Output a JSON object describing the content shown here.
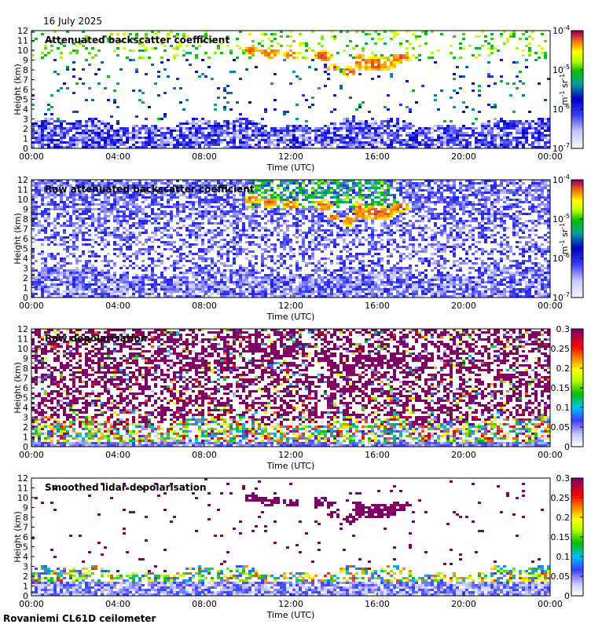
{
  "header": {
    "date": "16 July 2025"
  },
  "footer": {
    "instrument": "Rovaniemi CL61D ceilometer"
  },
  "colors": {
    "depol_cloud": "#800066",
    "bs_low": "#3c3cff",
    "bs_high": "#ff6600"
  },
  "chart_data": [
    {
      "type": "heatmap",
      "title": "Attenuated backscatter coefficient",
      "xlabel": "Time (UTC)",
      "ylabel": "Height (km)",
      "x_ticks": [
        "00:00",
        "04:00",
        "08:00",
        "12:00",
        "16:00",
        "20:00",
        "00:00"
      ],
      "xlim_hours": [
        0,
        24
      ],
      "y_ticks": [
        0,
        1,
        2,
        3,
        4,
        5,
        6,
        7,
        8,
        9,
        10,
        11,
        12
      ],
      "ylim": [
        0,
        12
      ],
      "colorbar": {
        "scale": "log",
        "range": [
          1e-07,
          0.0001
        ],
        "tick_labels": [
          "10-7",
          "10-6",
          "10-5",
          "10-4"
        ],
        "tick_values": [
          1e-07,
          1e-06,
          1e-05,
          0.0001
        ],
        "unit_label": "m-1 sr-1"
      }
    },
    {
      "type": "heatmap",
      "title": "Raw attenuated backscatter coefficient",
      "xlabel": "Time (UTC)",
      "ylabel": "Height (km)",
      "x_ticks": [
        "00:00",
        "04:00",
        "08:00",
        "12:00",
        "16:00",
        "20:00",
        "00:00"
      ],
      "xlim_hours": [
        0,
        24
      ],
      "y_ticks": [
        0,
        1,
        2,
        3,
        4,
        5,
        6,
        7,
        8,
        9,
        10,
        11,
        12
      ],
      "ylim": [
        0,
        12
      ],
      "colorbar": {
        "scale": "log",
        "range": [
          1e-07,
          0.0001
        ],
        "tick_labels": [
          "10-7",
          "10-6",
          "10-5",
          "10-4"
        ],
        "tick_values": [
          1e-07,
          1e-06,
          1e-05,
          0.0001
        ],
        "unit_label": "m-1 sr-1"
      }
    },
    {
      "type": "heatmap",
      "title": "Raw depolarisation",
      "xlabel": "Time (UTC)",
      "ylabel": "Height (km)",
      "x_ticks": [
        "00:00",
        "04:00",
        "08:00",
        "12:00",
        "16:00",
        "20:00",
        "00:00"
      ],
      "xlim_hours": [
        0,
        24
      ],
      "y_ticks": [
        0,
        1,
        2,
        3,
        4,
        5,
        6,
        7,
        8,
        9,
        10,
        11,
        12
      ],
      "ylim": [
        0,
        12
      ],
      "colorbar": {
        "scale": "linear",
        "range": [
          0,
          0.3
        ],
        "tick_labels": [
          "0",
          "0.05",
          "0.1",
          "0.15",
          "0.2",
          "0.25",
          "0.3"
        ],
        "tick_values": [
          0,
          0.05,
          0.1,
          0.15,
          0.2,
          0.25,
          0.3
        ]
      }
    },
    {
      "type": "heatmap",
      "title": "Smoothed lidar depolarisation",
      "xlabel": "Time (UTC)",
      "ylabel": "Height (km)",
      "x_ticks": [
        "00:00",
        "04:00",
        "08:00",
        "12:00",
        "16:00",
        "20:00",
        "00:00"
      ],
      "xlim_hours": [
        0,
        24
      ],
      "y_ticks": [
        0,
        1,
        2,
        3,
        4,
        5,
        6,
        7,
        8,
        9,
        10,
        11,
        12
      ],
      "ylim": [
        0,
        12
      ],
      "colorbar": {
        "scale": "linear",
        "range": [
          0,
          0.3
        ],
        "tick_labels": [
          "0",
          "0.05",
          "0.1",
          "0.15",
          "0.2",
          "0.25",
          "0.3"
        ],
        "tick_values": [
          0,
          0.05,
          0.1,
          0.15,
          0.2,
          0.25,
          0.3
        ]
      }
    }
  ]
}
